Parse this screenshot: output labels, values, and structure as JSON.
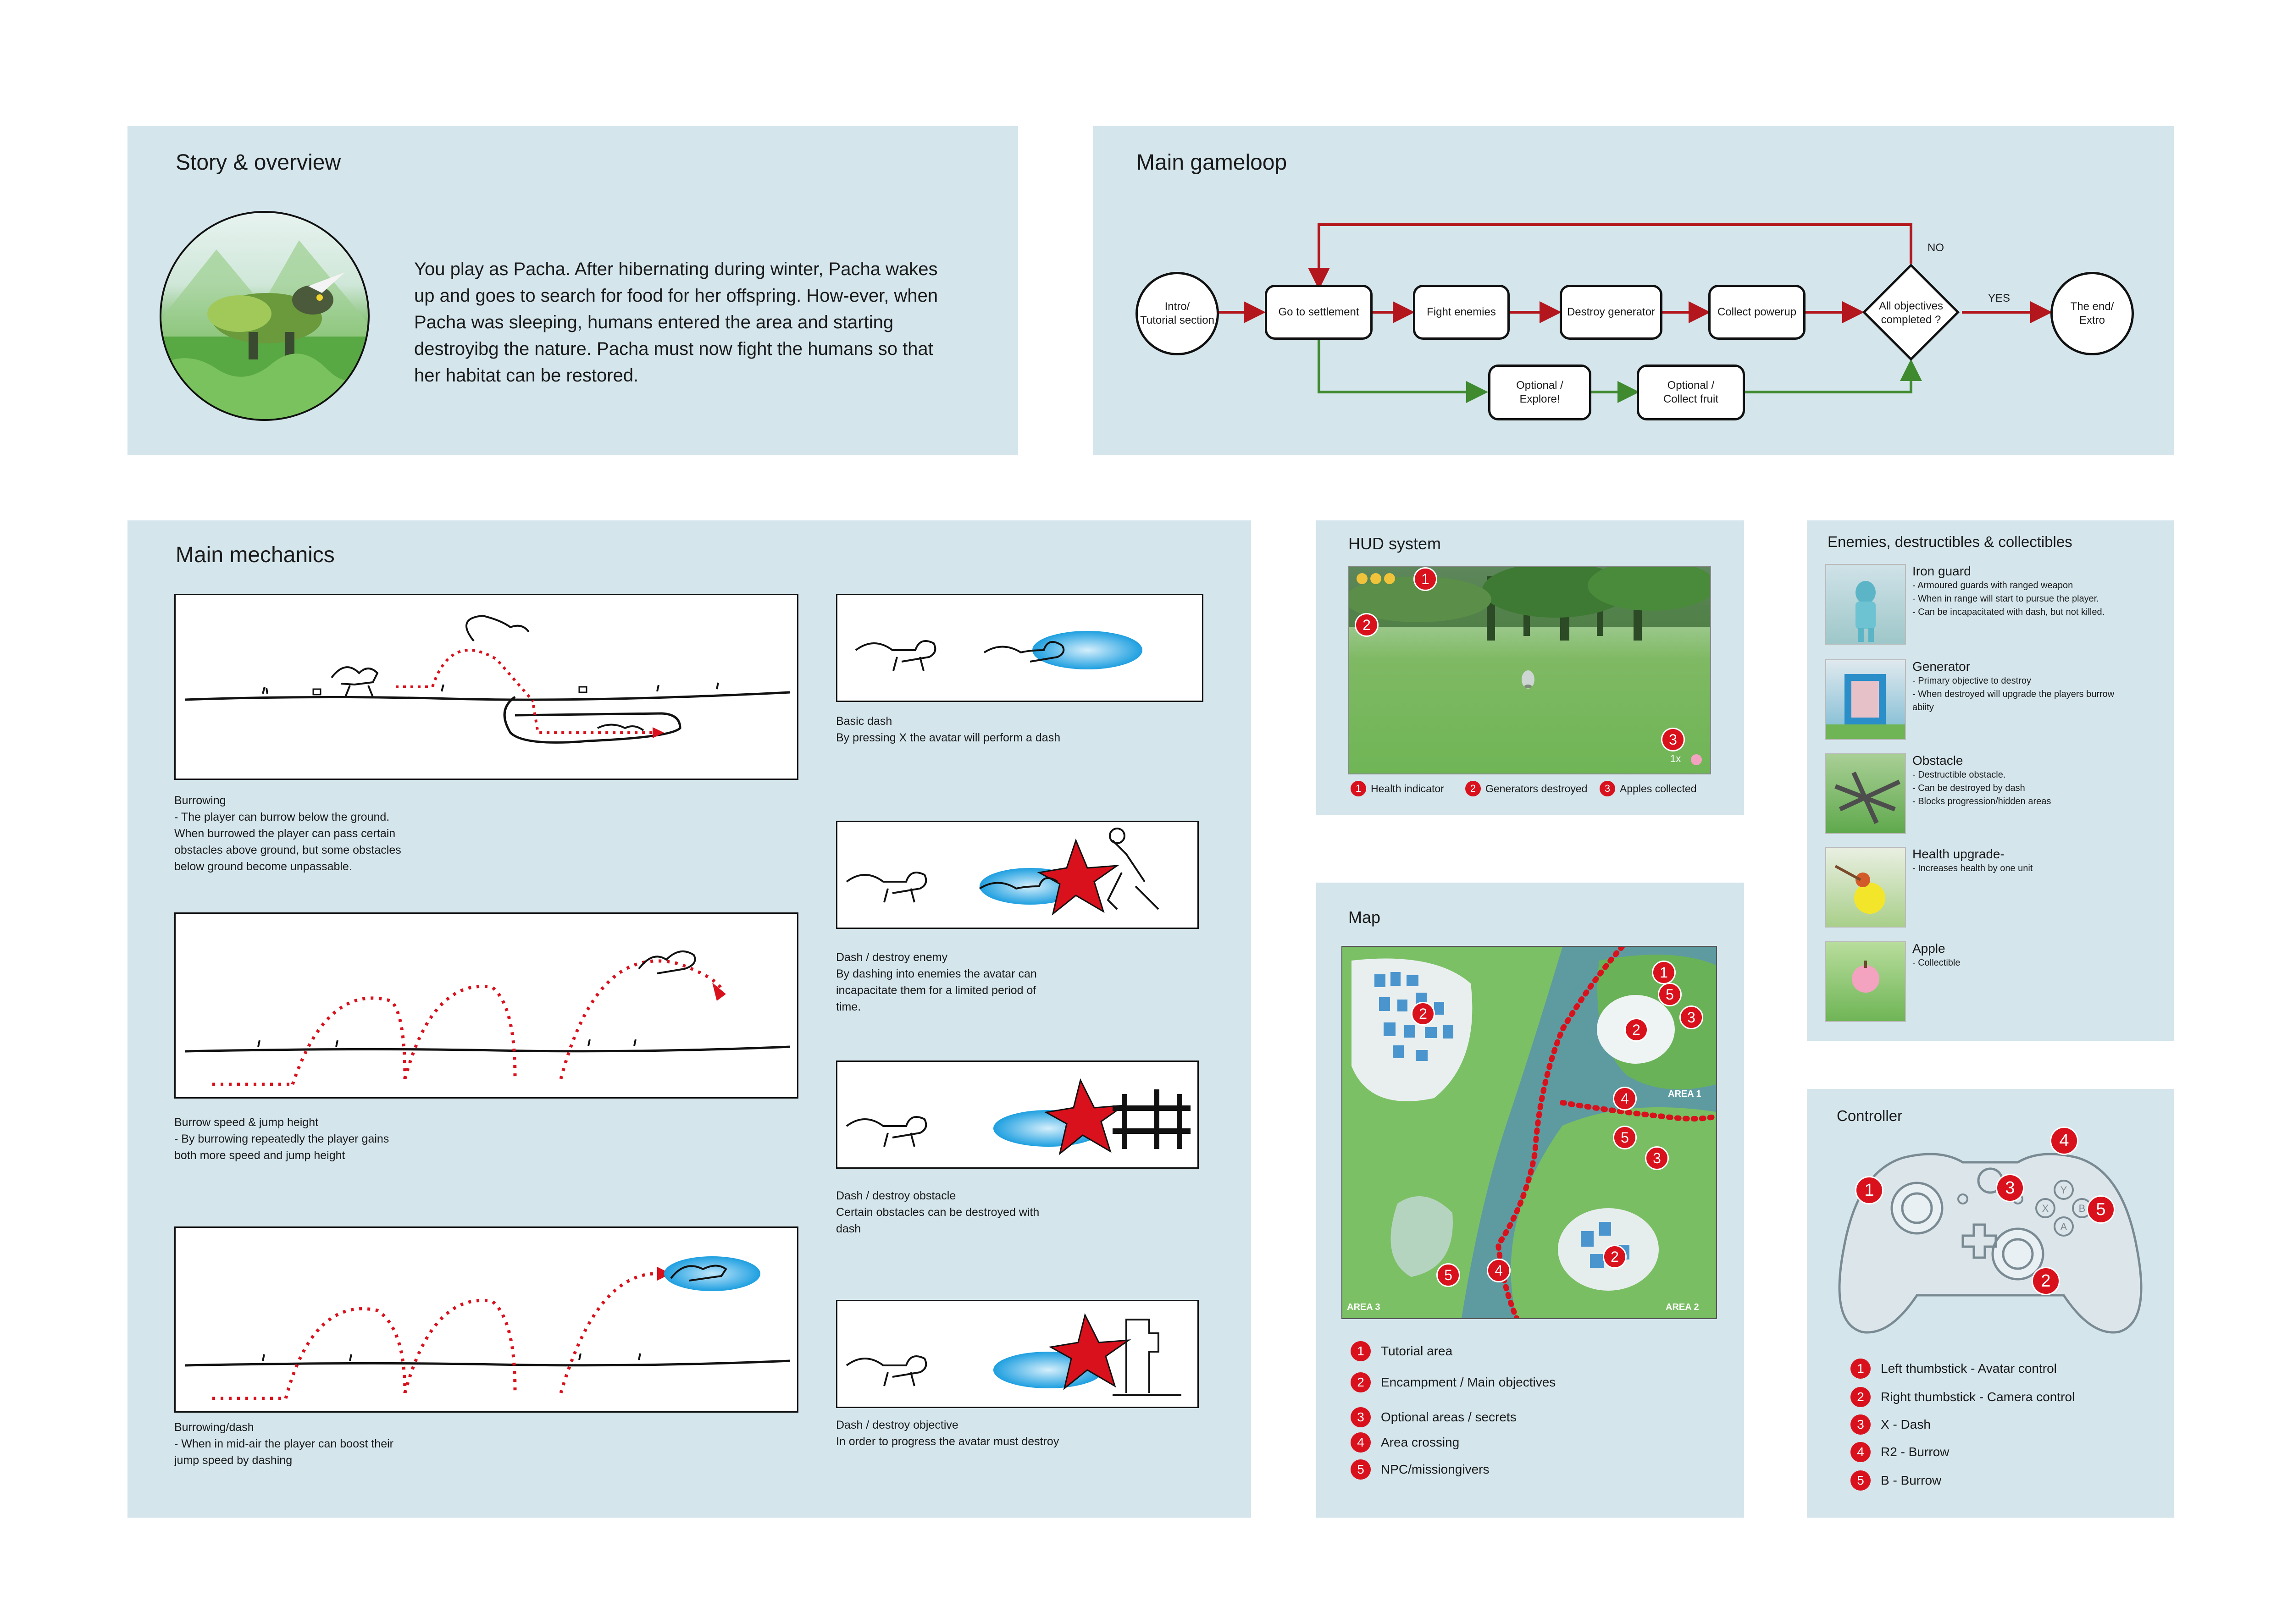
{
  "story": {
    "title": "Story & overview",
    "text": "You play as Pacha. After hibernating during winter, Pacha wakes up and goes to search for food for her offspring. How-ever, when Pacha was sleeping, humans entered the area and starting destroyibg the nature. Pacha must now fight the humans  so that her habitat can be restored."
  },
  "gameloop": {
    "title": "Main gameloop",
    "nodes": {
      "intro": "Intro/\nTutorial section",
      "settlement": "Go to settlement",
      "fight": "Fight enemies",
      "generator": "Destroy generator",
      "powerup": "Collect powerup",
      "objectives": "All objectives\ncompleted ?",
      "end": "The end/\nExtro",
      "explore": "Optional /\nExplore!",
      "fruit": "Optional /\nCollect fruit"
    },
    "no": "NO",
    "yes": "YES"
  },
  "mechanics": {
    "title": "Main mechanics",
    "items": [
      {
        "caption": "Burrowing\n- The player can burrow below the ground.\nWhen burrowed the player can pass certain\nobstacles above ground, but some obstacles\nbelow ground become unpassable."
      },
      {
        "caption": "Burrow speed & jump height\n- By burrowing repeatedly the player gains\nboth more speed and jump height"
      },
      {
        "caption": "Burrowing/dash\n- When in mid-air the player can boost their\njump speed by dashing"
      },
      {
        "caption": "Basic dash\nBy pressing X the avatar will perform a dash"
      },
      {
        "caption": "Dash / destroy enemy\nBy dashing into enemies the avatar can\nincapacitate them for a limited period of\ntime."
      },
      {
        "caption": "Dash / destroy obstacle\nCertain obstacles can be destroyed with\ndash"
      },
      {
        "caption": "Dash / destroy objective\nIn order to progress the avatar must destroy"
      }
    ]
  },
  "hud": {
    "title": "HUD system",
    "legend": [
      "Health indicator",
      "Generators destroyed",
      "Apples collected"
    ],
    "counter": "1x"
  },
  "map": {
    "title": "Map",
    "areas": [
      "AREA 1",
      "AREA 2",
      "AREA 3"
    ],
    "legend": [
      "Tutorial area",
      "Encampment / Main objectives",
      "Optional areas / secrets",
      "Area crossing",
      "NPC/missiongivers"
    ]
  },
  "enemies": {
    "title": "Enemies, destructibles & collectibles",
    "items": [
      {
        "name": "Iron guard",
        "desc": "- Armoured guards with ranged weapon\n- When in range will start to pursue the player.\n- Can be incapacitated with dash, but not killed."
      },
      {
        "name": "Generator",
        "desc": "- Primary objective to destroy\n- When destroyed will upgrade the players burrow\nabiity"
      },
      {
        "name": "Obstacle",
        "desc": "- Destructible obstacle.\n- Can be destroyed by dash\n- Blocks progression/hidden areas"
      },
      {
        "name": "Health upgrade-",
        "desc": "- Increases health by one unit"
      },
      {
        "name": "Apple",
        "desc": "- Collectible"
      }
    ]
  },
  "controller": {
    "title": "Controller",
    "legend": [
      "Left thumbstick - Avatar control",
      "Right thumbstick - Camera control",
      "X - Dash",
      "R2 - Burrow",
      "B - Burrow"
    ],
    "buttons": [
      "Y",
      "X",
      "B",
      "A"
    ]
  },
  "colors": {
    "panel": "#d4e5ec",
    "accent": "#d9111c",
    "flow_red": "#b3161c",
    "flow_green": "#3f8a2e",
    "dash_blue": "#1e9fe0"
  }
}
